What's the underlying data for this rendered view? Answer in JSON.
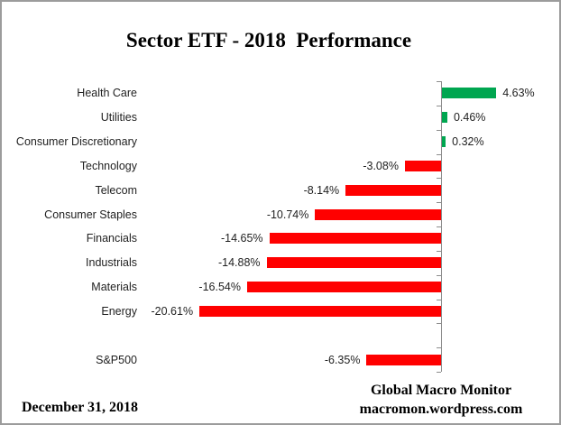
{
  "title": "Sector ETF - 2018  Performance",
  "footer": {
    "date": "December 31, 2018",
    "attribution_line1": "Global Macro Monitor",
    "attribution_line2": "macromon.wordpress.com"
  },
  "chart_data": {
    "type": "bar",
    "orientation": "horizontal",
    "title": "Sector ETF - 2018  Performance",
    "categories": [
      "Health Care",
      "Utilities",
      "Consumer Discretionary",
      "Technology",
      "Telecom",
      "Consumer Staples",
      "Financials",
      "Industrials",
      "Materials",
      "Energy",
      "",
      "S&P500"
    ],
    "values": [
      4.63,
      0.46,
      0.32,
      -3.08,
      -8.14,
      -10.74,
      -14.65,
      -14.88,
      -16.54,
      -20.61,
      null,
      -6.35
    ],
    "value_labels": [
      "4.63%",
      "0.46%",
      "0.32%",
      "-3.08%",
      "-8.14%",
      "-10.74%",
      "-14.65%",
      "-14.88%",
      "-16.54%",
      "-20.61%",
      "",
      "-6.35%"
    ],
    "positive_color": "#00A650",
    "negative_color": "#FF0000",
    "axis_color": "#8C8C8C",
    "xlim": [
      -22,
      9
    ],
    "grid": false,
    "legend": false,
    "value_unit": "%"
  }
}
